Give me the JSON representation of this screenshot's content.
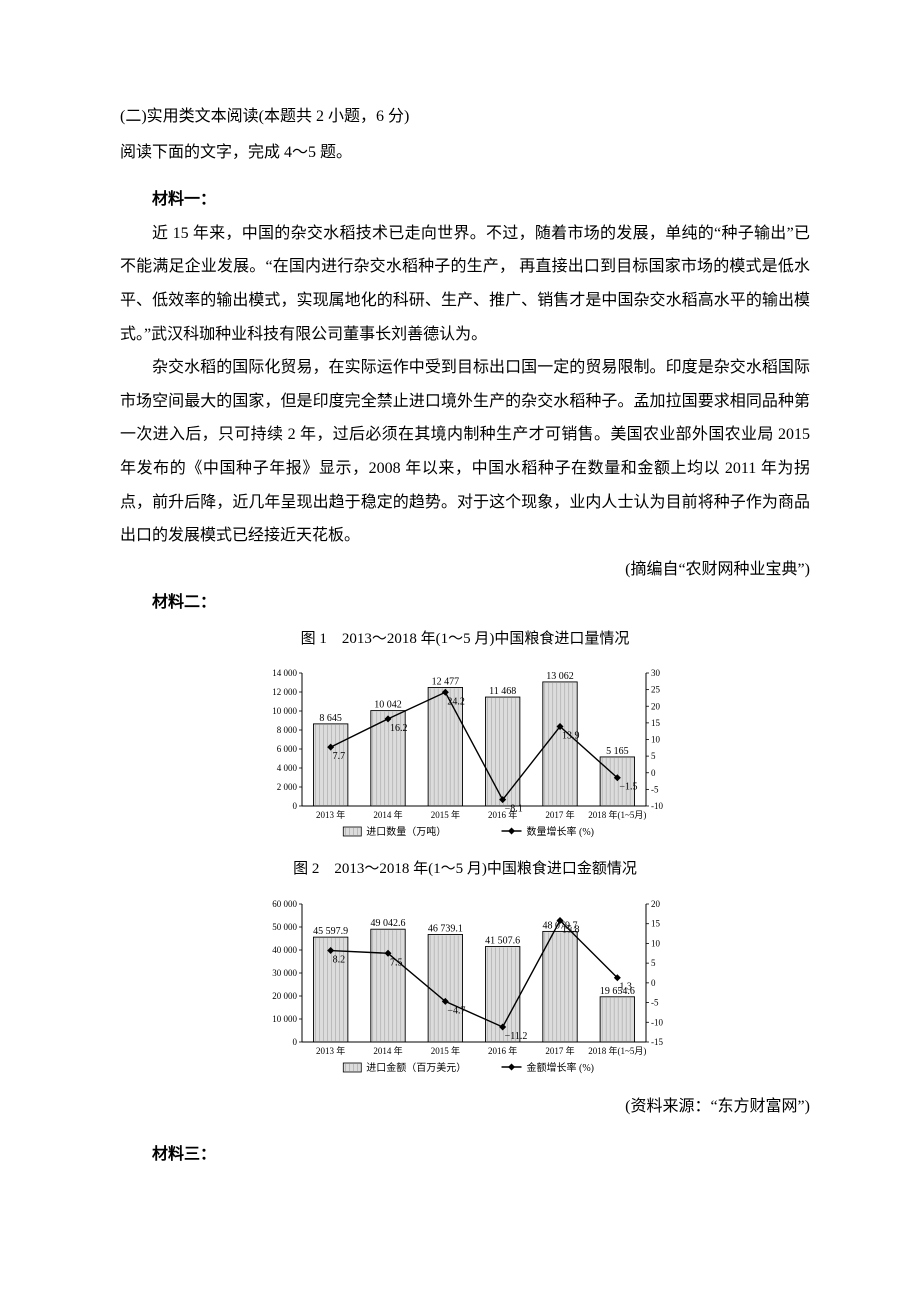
{
  "heading": "(二)实用类文本阅读(本题共 2 小题，6 分)",
  "subhead": "阅读下面的文字，完成 4～5 题。",
  "material1": {
    "label": "材料一：",
    "p1": "近 15 年来，中国的杂交水稻技术已走向世界。不过，随着市场的发展，单纯的“种子输出”已不能满足企业发展。“在国内进行杂交水稻种子的生产，  再直接出口到目标国家市场的模式是低水平、低效率的输出模式，实现属地化的科研、生产、推广、销售才是中国杂交水稻高水平的输出模式。”武汉科珈种业科技有限公司董事长刘善德认为。",
    "p2": "杂交水稻的国际化贸易，在实际运作中受到目标出口国一定的贸易限制。印度是杂交水稻国际市场空间最大的国家，但是印度完全禁止进口境外生产的杂交水稻种子。孟加拉国要求相同品种第一次进入后，只可持续 2 年，过后必须在其境内制种生产才可销售。美国农业部外国农业局 2015 年发布的《中国种子年报》显示，2008 年以来，中国水稻种子在数量和金额上均以 2011 年为拐点，前升后降，近几年呈现出趋于稳定的趋势。对于这个现象，业内人士认为目前将种子作为商品出口的发展模式已经接近天花板。",
    "source": "(摘编自“农财网种业宝典”)"
  },
  "material2": {
    "label": "材料二：",
    "source": "(资料来源：“东方财富网”)"
  },
  "material3_label": "材料三：",
  "chart1": {
    "type": "bar+line",
    "title": "图 1　2013～2018 年(1～5 月)中国粮食进口量情况",
    "categories": [
      "2013 年",
      "2014 年",
      "2015 年",
      "2016 年",
      "2017 年",
      "2018 年(1~5月)"
    ],
    "bar_values": [
      8645,
      10042,
      12477,
      11468,
      13062,
      5165
    ],
    "bar_labels": [
      "8 645",
      "10 042",
      "12 477",
      "11 468",
      "13 062",
      "5 165"
    ],
    "line_values": [
      7.7,
      16.2,
      24.2,
      -8.1,
      13.9,
      -1.5
    ],
    "line_labels": [
      "7.7",
      "16.2",
      "24.2",
      "−8.1",
      "13.9",
      "−1.5"
    ],
    "y_left": {
      "min": 0,
      "max": 14000,
      "ticks": [
        0,
        2000,
        4000,
        6000,
        8000,
        10000,
        12000,
        14000
      ],
      "tick_labels": [
        "0",
        "2 000",
        "4 000",
        "6 000",
        "8 000",
        "10 000",
        "12 000",
        "14 000"
      ]
    },
    "y_right": {
      "min": -10,
      "max": 30,
      "ticks": [
        -10,
        -5,
        0,
        5,
        10,
        15,
        20,
        25,
        30
      ]
    },
    "legend_bar": "进口数量（万吨）",
    "legend_line": "数量增长率 (%)",
    "bar_fill": "#dcdcdc",
    "bar_stroke": "#000000",
    "line_color": "#000000",
    "marker": "diamond",
    "bg": "#ffffff",
    "axis_fontsize": 9,
    "label_fontsize": 10,
    "bar_width": 0.6
  },
  "chart2": {
    "type": "bar+line",
    "title": "图 2　2013～2018 年(1～5 月)中国粮食进口金额情况",
    "categories": [
      "2013 年",
      "2014 年",
      "2015 年",
      "2016 年",
      "2017 年",
      "2018 年(1~5月)"
    ],
    "bar_values": [
      45597.9,
      49042.6,
      46739.1,
      41507.6,
      48079.7,
      19654.6
    ],
    "bar_labels": [
      "45 597.9",
      "49 042.6",
      "46 739.1",
      "41 507.6",
      "48 079.7",
      "19 654.6"
    ],
    "line_values": [
      8.2,
      7.5,
      -4.7,
      -11.2,
      15.8,
      1.3
    ],
    "line_labels": [
      "8.2",
      "7.5",
      "−4.7",
      "−11.2",
      "15.8",
      "1.3"
    ],
    "y_left": {
      "min": 0,
      "max": 60000,
      "ticks": [
        0,
        10000,
        20000,
        30000,
        40000,
        50000,
        60000
      ],
      "tick_labels": [
        "0",
        "10 000",
        "20 000",
        "30 000",
        "40 000",
        "50 000",
        "60 000"
      ]
    },
    "y_right": {
      "min": -15,
      "max": 20,
      "ticks": [
        -15,
        -10,
        -5,
        0,
        5,
        10,
        15,
        20
      ]
    },
    "legend_bar": "进口金额（百万美元）",
    "legend_line": "金额增长率 (%)",
    "bar_fill": "#dcdcdc",
    "bar_stroke": "#000000",
    "line_color": "#000000",
    "marker": "diamond",
    "bg": "#ffffff",
    "axis_fontsize": 9,
    "label_fontsize": 10,
    "bar_width": 0.6
  }
}
